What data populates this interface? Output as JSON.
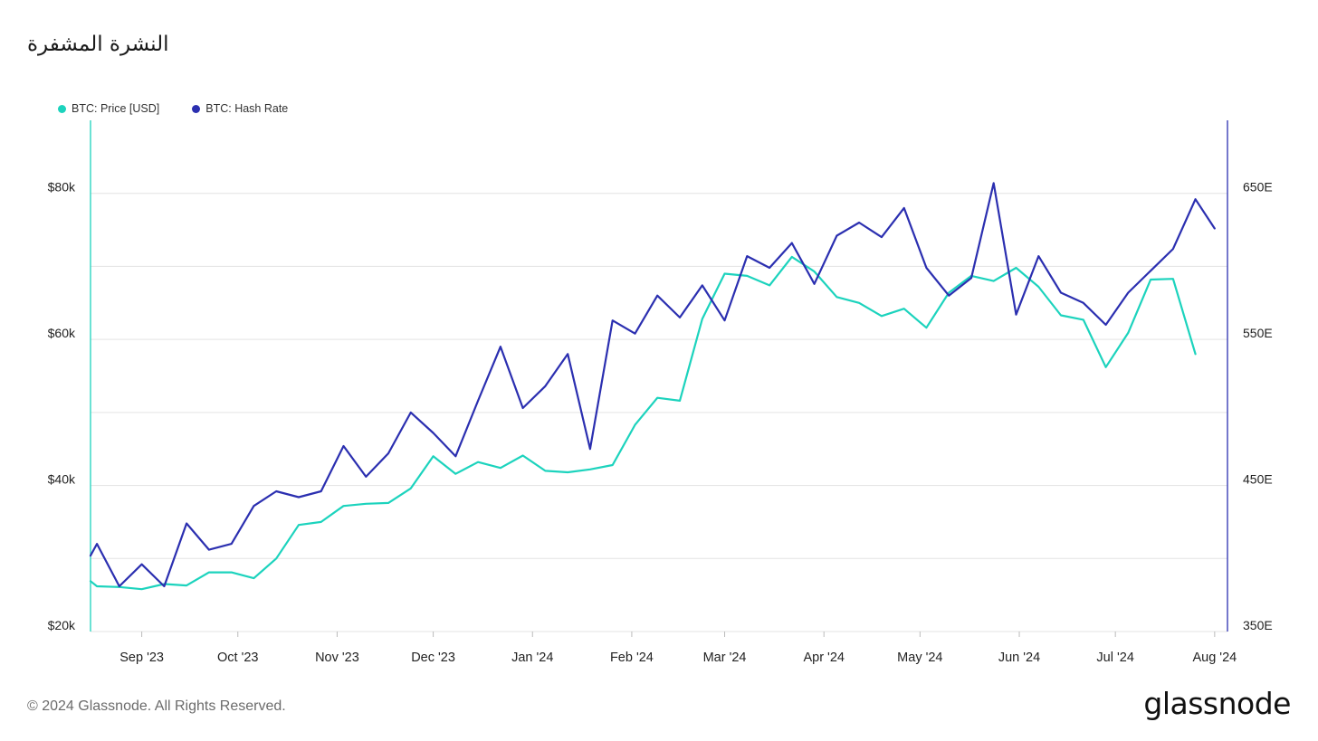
{
  "title": "النشرة المشفرة",
  "footer": "© 2024 Glassnode. All Rights Reserved.",
  "brand": "glassnode",
  "chart_data": {
    "type": "line",
    "colors": {
      "price": "#1cd3bd",
      "hash": "#2b2fb0",
      "grid": "#e3e3e3",
      "axis_text": "#222222"
    },
    "x_domain": [
      "2023-08-16",
      "2024-08-05"
    ],
    "x_ticks": [
      {
        "date": "2023-09-01",
        "label": "Sep '23"
      },
      {
        "date": "2023-10-01",
        "label": "Oct '23"
      },
      {
        "date": "2023-11-01",
        "label": "Nov '23"
      },
      {
        "date": "2023-12-01",
        "label": "Dec '23"
      },
      {
        "date": "2024-01-01",
        "label": "Jan '24"
      },
      {
        "date": "2024-02-01",
        "label": "Feb '24"
      },
      {
        "date": "2024-03-01",
        "label": "Mar '24"
      },
      {
        "date": "2024-04-01",
        "label": "Apr '24"
      },
      {
        "date": "2024-05-01",
        "label": "May '24"
      },
      {
        "date": "2024-06-01",
        "label": "Jun '24"
      },
      {
        "date": "2024-07-01",
        "label": "Jul '24"
      },
      {
        "date": "2024-08-01",
        "label": "Aug '24"
      }
    ],
    "y_left": {
      "range": [
        20000,
        90000
      ],
      "ticks": [
        20000,
        40000,
        60000,
        80000
      ],
      "tick_labels": [
        "$20k",
        "$40k",
        "$60k",
        "$80k"
      ]
    },
    "y_right": {
      "range": [
        350,
        700
      ],
      "ticks": [
        350,
        450,
        550,
        650
      ],
      "tick_labels": [
        "350E",
        "450E",
        "550E",
        "650E"
      ]
    },
    "grid_y_left": [
      30000,
      40000,
      50000,
      60000,
      70000,
      80000
    ],
    "legend": {
      "position": "top-left"
    },
    "series": [
      {
        "name": "BTC: Price [USD]",
        "axis": "left",
        "color": "#1cd3bd",
        "points": [
          [
            "2023-08-16",
            26900
          ],
          [
            "2023-08-18",
            26200
          ],
          [
            "2023-08-25",
            26100
          ],
          [
            "2023-09-01",
            25800
          ],
          [
            "2023-09-08",
            26500
          ],
          [
            "2023-09-15",
            26300
          ],
          [
            "2023-09-22",
            28100
          ],
          [
            "2023-09-29",
            28100
          ],
          [
            "2023-10-06",
            27300
          ],
          [
            "2023-10-13",
            30000
          ],
          [
            "2023-10-20",
            34600
          ],
          [
            "2023-10-27",
            35000
          ],
          [
            "2023-11-03",
            37200
          ],
          [
            "2023-11-10",
            37500
          ],
          [
            "2023-11-17",
            37600
          ],
          [
            "2023-11-24",
            39600
          ],
          [
            "2023-12-01",
            44000
          ],
          [
            "2023-12-08",
            41600
          ],
          [
            "2023-12-15",
            43200
          ],
          [
            "2023-12-22",
            42400
          ],
          [
            "2023-12-29",
            44100
          ],
          [
            "2024-01-05",
            42000
          ],
          [
            "2024-01-12",
            41800
          ],
          [
            "2024-01-19",
            42200
          ],
          [
            "2024-01-26",
            42800
          ],
          [
            "2024-02-02",
            48300
          ],
          [
            "2024-02-09",
            52000
          ],
          [
            "2024-02-16",
            51600
          ],
          [
            "2024-02-23",
            62800
          ],
          [
            "2024-03-01",
            69000
          ],
          [
            "2024-03-08",
            68700
          ],
          [
            "2024-03-15",
            67400
          ],
          [
            "2024-03-22",
            71300
          ],
          [
            "2024-03-29",
            69300
          ],
          [
            "2024-04-05",
            65800
          ],
          [
            "2024-04-12",
            65000
          ],
          [
            "2024-04-19",
            63200
          ],
          [
            "2024-04-26",
            64200
          ],
          [
            "2024-05-03",
            61600
          ],
          [
            "2024-05-10",
            66400
          ],
          [
            "2024-05-17",
            68700
          ],
          [
            "2024-05-24",
            68000
          ],
          [
            "2024-05-31",
            69800
          ],
          [
            "2024-06-07",
            67200
          ],
          [
            "2024-06-14",
            63300
          ],
          [
            "2024-06-21",
            62700
          ],
          [
            "2024-06-28",
            56200
          ],
          [
            "2024-07-05",
            60900
          ],
          [
            "2024-07-12",
            68200
          ],
          [
            "2024-07-19",
            68300
          ],
          [
            "2024-07-26",
            58000
          ]
        ]
      },
      {
        "name": "BTC: Hash Rate",
        "axis": "right",
        "color": "#2b2fb0",
        "points": [
          [
            "2023-08-16",
            402
          ],
          [
            "2023-08-18",
            410
          ],
          [
            "2023-08-25",
            381
          ],
          [
            "2023-09-01",
            396
          ],
          [
            "2023-09-08",
            381
          ],
          [
            "2023-09-15",
            424
          ],
          [
            "2023-09-22",
            406
          ],
          [
            "2023-09-29",
            410
          ],
          [
            "2023-10-06",
            436
          ],
          [
            "2023-10-13",
            446
          ],
          [
            "2023-10-20",
            442
          ],
          [
            "2023-10-27",
            446
          ],
          [
            "2023-11-03",
            477
          ],
          [
            "2023-11-10",
            456
          ],
          [
            "2023-11-17",
            472
          ],
          [
            "2023-11-24",
            500
          ],
          [
            "2023-12-01",
            486
          ],
          [
            "2023-12-08",
            470
          ],
          [
            "2023-12-15",
            508
          ],
          [
            "2023-12-22",
            545
          ],
          [
            "2023-12-29",
            503
          ],
          [
            "2024-01-05",
            518
          ],
          [
            "2024-01-12",
            540
          ],
          [
            "2024-01-19",
            475
          ],
          [
            "2024-01-26",
            563
          ],
          [
            "2024-02-02",
            554
          ],
          [
            "2024-02-09",
            580
          ],
          [
            "2024-02-16",
            565
          ],
          [
            "2024-02-23",
            587
          ],
          [
            "2024-03-01",
            563
          ],
          [
            "2024-03-08",
            607
          ],
          [
            "2024-03-15",
            599
          ],
          [
            "2024-03-22",
            616
          ],
          [
            "2024-03-29",
            588
          ],
          [
            "2024-04-05",
            621
          ],
          [
            "2024-04-12",
            630
          ],
          [
            "2024-04-19",
            620
          ],
          [
            "2024-04-26",
            640
          ],
          [
            "2024-05-03",
            599
          ],
          [
            "2024-05-10",
            580
          ],
          [
            "2024-05-17",
            592
          ],
          [
            "2024-05-24",
            657
          ],
          [
            "2024-05-31",
            567
          ],
          [
            "2024-06-07",
            607
          ],
          [
            "2024-06-14",
            582
          ],
          [
            "2024-06-21",
            575
          ],
          [
            "2024-06-28",
            560
          ],
          [
            "2024-07-05",
            582
          ],
          [
            "2024-07-12",
            597
          ],
          [
            "2024-07-19",
            612
          ],
          [
            "2024-07-26",
            646
          ],
          [
            "2024-08-01",
            626
          ]
        ]
      }
    ]
  }
}
